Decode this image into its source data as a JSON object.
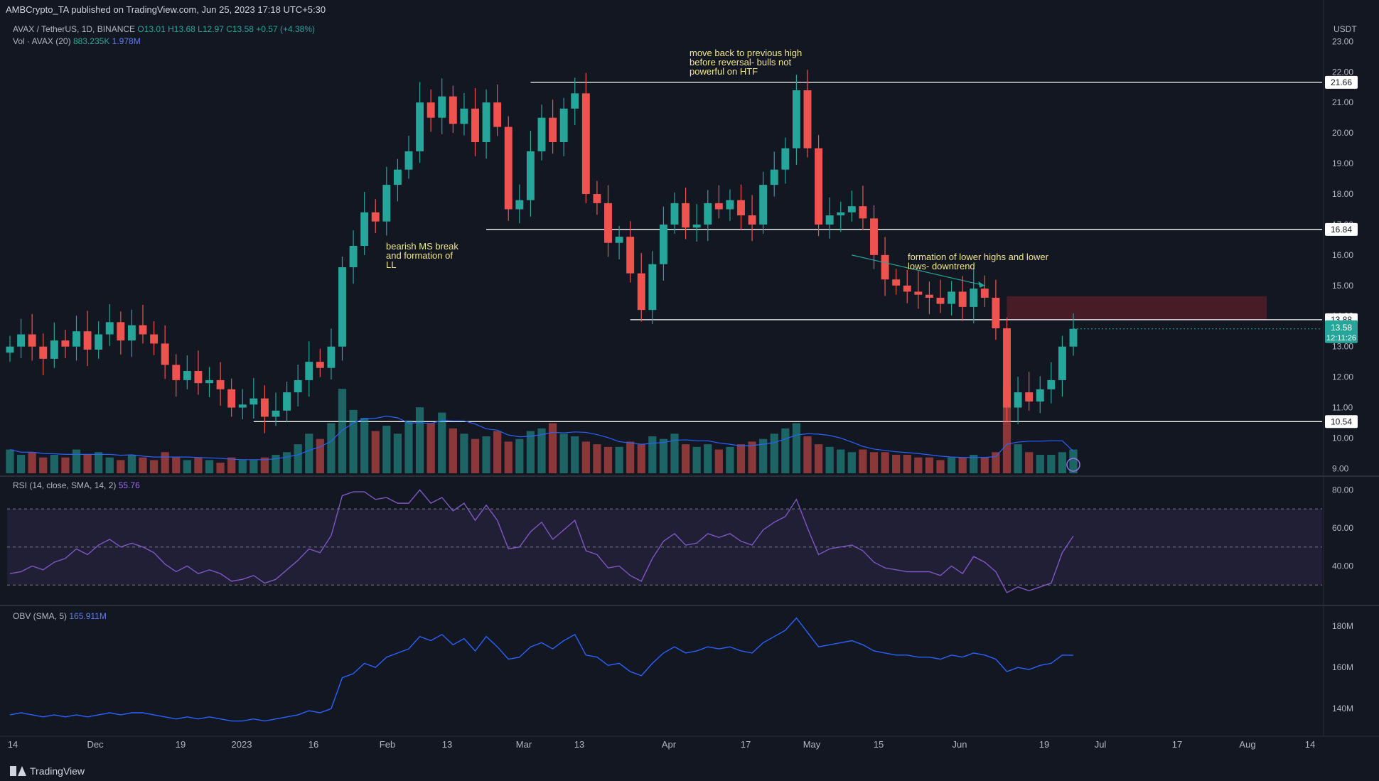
{
  "header": {
    "publisher": "AMBCrypto_TA published on TradingView.com, Jun 25, 2023 17:18 UTC+5:30"
  },
  "legend": {
    "symbol": "AVAX / TetherUS, 1D, BINANCE",
    "ohlc": {
      "o": "O13.01",
      "h": "H13.68",
      "l": "L12.97",
      "c": "C13.58",
      "chg": "+0.57 (+4.38%)"
    },
    "vol_label": "Vol · AVAX (20)",
    "vol_value_1": "883.235K",
    "vol_value_2": "1.978M",
    "rsi_label": "RSI (14, close, SMA, 14, 2)",
    "rsi_value": "55.76",
    "obv_label": "OBV (SMA, 5)",
    "obv_value": "165.911M"
  },
  "annotations": {
    "note_top": "move back to previous high\nbefore reversal- bulls not\npowerful on HTF",
    "note_left": "bearish MS break\nand formation of\nLL",
    "note_right": "formation of lower highs and lower\nlows- downtrend"
  },
  "footer": {
    "brand": "TradingView"
  },
  "colors": {
    "up": "#26a69a",
    "down": "#ef5350",
    "rsi": "#7e57c2",
    "obv": "#2962ff",
    "vol_ma": "#2962ff",
    "level": "#ffffff",
    "zone": "#5a1f2a",
    "text_note": "#f0e68c"
  },
  "chart_data": {
    "type": "candlestick",
    "currency": "USDT",
    "price_axis": {
      "ylim": [
        8.8,
        23.8
      ],
      "ticks": [
        9,
        10,
        11,
        12,
        13,
        14,
        15,
        16,
        17,
        18,
        19,
        20,
        21,
        22,
        23
      ],
      "tick_labels": [
        "9.00",
        "10.00",
        "11.00",
        "12.00",
        "13.00",
        "14.00",
        "15.00",
        "16.00",
        "17.00",
        "18.00",
        "19.00",
        "20.00",
        "21.00",
        "22.00",
        "23.00"
      ]
    },
    "levels": [
      {
        "value": 21.66,
        "label": "21.66"
      },
      {
        "value": 16.84,
        "label": "16.84"
      },
      {
        "value": 13.88,
        "label": "13.88"
      },
      {
        "value": 10.54,
        "label": "10.54"
      }
    ],
    "last_price": {
      "value": 13.58,
      "label": "13.58",
      "countdown": "12:11:26"
    },
    "supply_zone": {
      "low": 13.88,
      "high": 14.65
    },
    "x_axis_labels": [
      "14",
      "Dec",
      "19",
      "2023",
      "16",
      "Feb",
      "13",
      "Mar",
      "13",
      "Apr",
      "17",
      "May",
      "15",
      "Jun",
      "19",
      "Jul",
      "17",
      "Aug",
      "14"
    ],
    "price_path": [
      13.0,
      13.4,
      13.0,
      12.6,
      13.2,
      13.0,
      13.5,
      12.9,
      13.4,
      13.8,
      13.2,
      13.7,
      13.4,
      13.1,
      12.4,
      11.9,
      12.2,
      11.8,
      11.9,
      11.6,
      11.0,
      11.1,
      11.3,
      10.7,
      10.9,
      11.5,
      11.9,
      12.5,
      12.3,
      13.0,
      15.6,
      16.3,
      17.4,
      17.1,
      18.3,
      18.8,
      19.4,
      21.0,
      20.5,
      21.2,
      20.3,
      20.8,
      19.7,
      21.0,
      20.2,
      17.5,
      17.8,
      19.4,
      20.5,
      19.7,
      20.8,
      21.3,
      18.0,
      17.7,
      16.4,
      16.6,
      15.4,
      14.2,
      15.7,
      17.0,
      17.7,
      16.9,
      17.0,
      17.7,
      17.5,
      17.8,
      17.3,
      17.0,
      18.3,
      18.8,
      19.5,
      21.4,
      19.5,
      17.0,
      17.3,
      17.4,
      17.6,
      17.2,
      16.0,
      15.2,
      15.0,
      14.8,
      14.7,
      14.6,
      14.4,
      14.8,
      14.3,
      14.9,
      14.6,
      13.6,
      11.0,
      11.5,
      11.2,
      11.6,
      11.9,
      13.0,
      13.58
    ],
    "volume_path": [
      0.9,
      0.7,
      0.8,
      0.6,
      0.7,
      0.6,
      0.9,
      0.7,
      0.8,
      0.6,
      0.5,
      0.7,
      0.6,
      0.5,
      0.8,
      0.6,
      0.5,
      0.6,
      0.5,
      0.4,
      0.6,
      0.5,
      0.5,
      0.6,
      0.7,
      0.8,
      1.1,
      1.5,
      1.3,
      1.9,
      3.2,
      2.4,
      2.1,
      1.6,
      1.8,
      1.5,
      2.0,
      2.5,
      1.9,
      2.3,
      1.7,
      1.5,
      1.3,
      1.4,
      1.6,
      1.2,
      1.3,
      1.6,
      1.7,
      1.9,
      1.5,
      1.4,
      1.2,
      1.1,
      1.0,
      1.0,
      1.2,
      1.1,
      1.4,
      1.3,
      1.5,
      1.1,
      1.0,
      1.1,
      0.9,
      1.0,
      1.1,
      1.2,
      1.3,
      1.5,
      1.7,
      1.9,
      1.4,
      1.1,
      1.0,
      0.9,
      0.8,
      0.9,
      0.8,
      0.8,
      0.7,
      0.7,
      0.6,
      0.6,
      0.5,
      0.6,
      0.6,
      0.7,
      0.6,
      0.8,
      3.3,
      1.1,
      0.8,
      0.7,
      0.7,
      0.8,
      0.9
    ],
    "rsi": {
      "ylim": [
        20,
        85
      ],
      "ticks": [
        40,
        60,
        80
      ],
      "tick_labels": [
        "40.00",
        "60.00",
        "80.00"
      ],
      "bands": [
        30,
        50,
        70
      ],
      "values": [
        36,
        37,
        40,
        38,
        42,
        44,
        49,
        46,
        51,
        54,
        50,
        52,
        50,
        47,
        41,
        37,
        40,
        36,
        38,
        36,
        32,
        33,
        35,
        31,
        33,
        38,
        43,
        49,
        47,
        56,
        77,
        79,
        79,
        75,
        76,
        73,
        73,
        80,
        73,
        76,
        69,
        73,
        64,
        72,
        64,
        49,
        50,
        58,
        63,
        54,
        59,
        64,
        48,
        46,
        39,
        40,
        35,
        32,
        44,
        53,
        57,
        51,
        52,
        57,
        55,
        57,
        53,
        51,
        59,
        63,
        66,
        75,
        60,
        46,
        49,
        50,
        51,
        48,
        42,
        39,
        38,
        37,
        37,
        37,
        35,
        40,
        36,
        45,
        42,
        37,
        26,
        29,
        27,
        29,
        31,
        47,
        55.76
      ]
    },
    "obv": {
      "ylim": [
        128,
        188
      ],
      "ticks": [
        140,
        160,
        180
      ],
      "tick_labels": [
        "140M",
        "160M",
        "180M"
      ],
      "values": [
        137,
        138,
        137,
        136,
        137,
        136,
        137,
        136,
        137,
        138,
        137,
        138,
        138,
        137,
        136,
        135,
        136,
        135,
        136,
        135,
        134,
        134,
        135,
        134,
        135,
        136,
        137,
        139,
        138,
        140,
        155,
        157,
        162,
        160,
        165,
        167,
        169,
        175,
        173,
        176,
        171,
        174,
        168,
        175,
        170,
        164,
        165,
        170,
        172,
        169,
        173,
        176,
        166,
        165,
        161,
        162,
        158,
        156,
        162,
        167,
        170,
        167,
        168,
        170,
        169,
        170,
        168,
        167,
        172,
        175,
        178,
        184,
        177,
        170,
        171,
        172,
        173,
        171,
        168,
        167,
        166,
        166,
        165,
        165,
        164,
        166,
        165,
        167,
        166,
        164,
        158,
        160,
        159,
        161,
        162,
        166,
        165.911
      ]
    }
  }
}
